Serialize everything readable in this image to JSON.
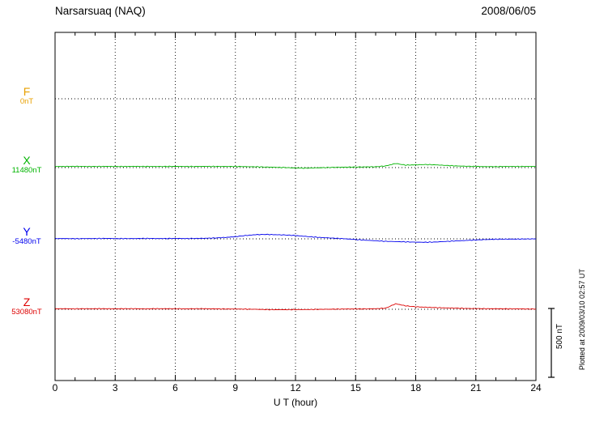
{
  "header": {
    "station": "Narsarsuaq (NAQ)",
    "date": "2008/06/05"
  },
  "x_axis": {
    "label": "U T (hour)",
    "tick_labels": [
      0,
      3,
      6,
      9,
      12,
      15,
      18,
      21,
      24
    ],
    "min": 0,
    "max": 24,
    "minor_step": 1
  },
  "components": [
    {
      "key": "F",
      "letter": "F",
      "value_label": "0nT",
      "color": "#E8A000"
    },
    {
      "key": "X",
      "letter": "X",
      "value_label": "11480nT",
      "color": "#00B400"
    },
    {
      "key": "Y",
      "letter": "Y",
      "value_label": "-5480nT",
      "color": "#0000EE"
    },
    {
      "key": "Z",
      "letter": "Z",
      "value_label": "53080nT",
      "color": "#DD0000"
    }
  ],
  "scale_bar": {
    "label": "500 nT",
    "nT": 500
  },
  "side_note": "Plotted at 2009/03/10 02:57 UT",
  "chart_data": {
    "type": "line",
    "title": "Narsarsuaq (NAQ) magnetogram, 2008/06/05",
    "xlabel": "U T (hour)",
    "x_range": [
      0,
      24
    ],
    "x_hours_step": 0.5,
    "grid": "dotted at 3-hour intervals and at each component baseline",
    "scale_nT_per_bar": 500,
    "series": [
      {
        "name": "F",
        "baseline_nT": 0,
        "color": "#E8A000",
        "noise_nT": 0,
        "note": "no trace plotted, baseline only",
        "values_dev_nT": []
      },
      {
        "name": "X",
        "baseline_nT": 11480,
        "color": "#00B400",
        "noise_nT": 3,
        "values_dev_nT": [
          8,
          8,
          9,
          8,
          8,
          9,
          8,
          8,
          9,
          8,
          8,
          8,
          9,
          8,
          8,
          9,
          8,
          8,
          8,
          7,
          6,
          4,
          2,
          0,
          -3,
          -4,
          -2,
          0,
          2,
          3,
          4,
          5,
          6,
          12,
          30,
          18,
          20,
          22,
          20,
          16,
          12,
          10,
          8,
          7,
          7,
          8,
          8,
          8,
          8
        ]
      },
      {
        "name": "Y",
        "baseline_nT": -5480,
        "color": "#0000EE",
        "noise_nT": 3,
        "values_dev_nT": [
          2,
          2,
          1,
          2,
          2,
          3,
          2,
          2,
          2,
          3,
          2,
          2,
          3,
          2,
          3,
          4,
          6,
          10,
          16,
          24,
          30,
          32,
          30,
          28,
          24,
          18,
          12,
          8,
          4,
          0,
          -5,
          -10,
          -14,
          -18,
          -20,
          -22,
          -24,
          -25,
          -23,
          -19,
          -15,
          -12,
          -8,
          -5,
          -3,
          -2,
          -2,
          -1,
          0
        ]
      },
      {
        "name": "Z",
        "baseline_nT": 53080,
        "color": "#DD0000",
        "noise_nT": 3,
        "values_dev_nT": [
          4,
          4,
          3,
          4,
          4,
          4,
          3,
          4,
          4,
          3,
          4,
          4,
          4,
          3,
          4,
          4,
          3,
          2,
          2,
          1,
          0,
          -2,
          -3,
          -3,
          -2,
          -2,
          -1,
          0,
          1,
          2,
          2,
          3,
          4,
          8,
          40,
          25,
          18,
          15,
          12,
          10,
          8,
          6,
          5,
          4,
          4,
          3,
          3,
          2,
          2
        ]
      }
    ]
  }
}
